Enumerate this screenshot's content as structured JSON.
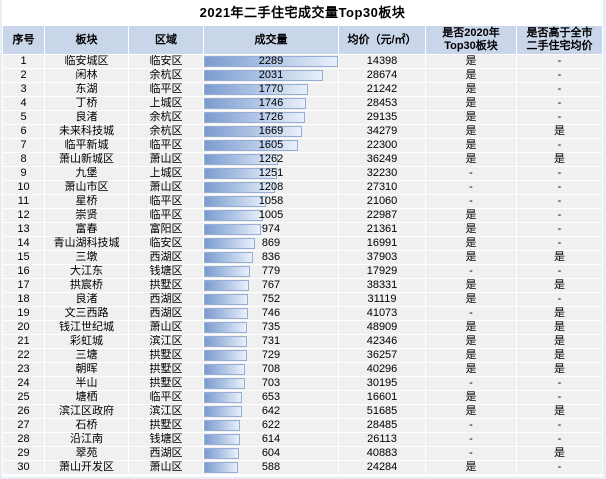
{
  "header": {
    "title": "2021年二手住宅成交量Top30板块"
  },
  "chart_data": {
    "type": "table",
    "title": "2021年二手住宅成交量Top30板块",
    "columns": [
      "序号",
      "板块",
      "区域",
      "成交量",
      "均价（元/㎡）",
      "是否2020年\nTop30板块",
      "是否高于全市\n二手住宅均价"
    ],
    "column_keys": [
      "rank",
      "plate",
      "district",
      "volume",
      "avg-price",
      "top30-2020",
      "above-city-avg"
    ],
    "bar_column": "成交量",
    "bar_column_index": 3,
    "bar_max": 2289,
    "bar_colors": {
      "fill_start": "#7b9cd0",
      "fill_end": "#e9f0fa",
      "border": "#96aed6"
    },
    "header_bg": "#c9d6ea",
    "row_bg": "#f0f0f0",
    "rows": [
      [
        1,
        "临安城区",
        "临安区",
        2289,
        14398,
        "是",
        "-"
      ],
      [
        2,
        "闲林",
        "余杭区",
        2031,
        28674,
        "是",
        "-"
      ],
      [
        3,
        "东湖",
        "临平区",
        1770,
        21242,
        "是",
        "-"
      ],
      [
        4,
        "丁桥",
        "上城区",
        1746,
        28453,
        "是",
        "-"
      ],
      [
        5,
        "良渚",
        "余杭区",
        1726,
        29135,
        "是",
        "-"
      ],
      [
        6,
        "未来科技城",
        "余杭区",
        1669,
        34279,
        "是",
        "是"
      ],
      [
        7,
        "临平新城",
        "临平区",
        1605,
        22300,
        "是",
        "-"
      ],
      [
        8,
        "萧山新城区",
        "萧山区",
        1262,
        36249,
        "是",
        "是"
      ],
      [
        9,
        "九堡",
        "上城区",
        1251,
        32230,
        "-",
        "-"
      ],
      [
        10,
        "萧山市区",
        "萧山区",
        1208,
        27310,
        "-",
        "-"
      ],
      [
        11,
        "星桥",
        "临平区",
        1058,
        21060,
        "-",
        "-"
      ],
      [
        12,
        "崇贤",
        "临平区",
        1005,
        22987,
        "是",
        "-"
      ],
      [
        13,
        "富春",
        "富阳区",
        974,
        21361,
        "是",
        "-"
      ],
      [
        14,
        "青山湖科技城",
        "临安区",
        869,
        16991,
        "是",
        "-"
      ],
      [
        15,
        "三墩",
        "西湖区",
        836,
        37903,
        "是",
        "是"
      ],
      [
        16,
        "大江东",
        "钱塘区",
        779,
        17929,
        "-",
        "-"
      ],
      [
        17,
        "拱宸桥",
        "拱墅区",
        767,
        38331,
        "是",
        "是"
      ],
      [
        18,
        "良渚",
        "西湖区",
        752,
        31119,
        "是",
        "-"
      ],
      [
        19,
        "文三西路",
        "西湖区",
        746,
        41073,
        "-",
        "是"
      ],
      [
        20,
        "钱江世纪城",
        "萧山区",
        735,
        48909,
        "是",
        "是"
      ],
      [
        21,
        "彩虹城",
        "滨江区",
        731,
        42346,
        "是",
        "是"
      ],
      [
        22,
        "三塘",
        "拱墅区",
        729,
        36257,
        "是",
        "是"
      ],
      [
        23,
        "朝晖",
        "拱墅区",
        708,
        40296,
        "是",
        "是"
      ],
      [
        24,
        "半山",
        "拱墅区",
        703,
        30195,
        "-",
        "-"
      ],
      [
        25,
        "塘栖",
        "临平区",
        653,
        16601,
        "是",
        "-"
      ],
      [
        26,
        "滨江区政府",
        "滨江区",
        642,
        51685,
        "是",
        "是"
      ],
      [
        27,
        "石桥",
        "拱墅区",
        622,
        28485,
        "-",
        "-"
      ],
      [
        28,
        "沿江南",
        "钱塘区",
        614,
        26113,
        "-",
        "-"
      ],
      [
        29,
        "翠苑",
        "西湖区",
        604,
        40883,
        "-",
        "是"
      ],
      [
        30,
        "萧山开发区",
        "萧山区",
        588,
        24284,
        "是",
        "-"
      ]
    ]
  }
}
